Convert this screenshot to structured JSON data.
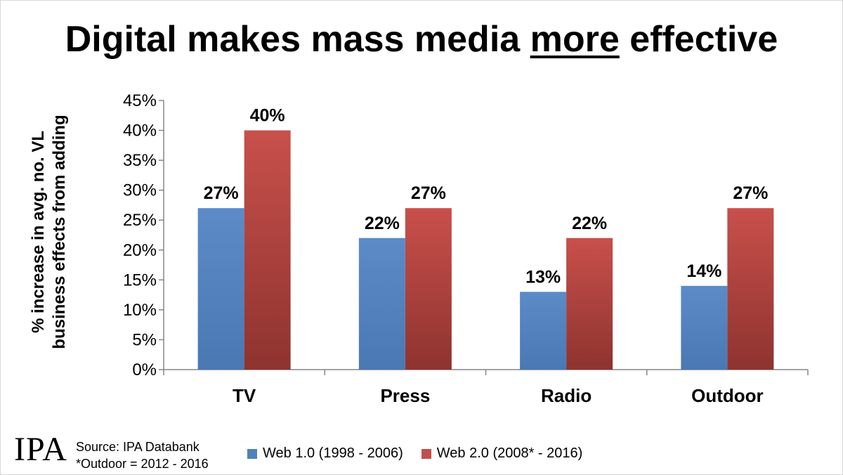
{
  "title": {
    "prefix": "Digital makes mass media ",
    "emphasis": "more",
    "suffix": " effective"
  },
  "chart_data": {
    "type": "bar",
    "title": "Digital makes mass media more effective",
    "ylabel_line1": "% increase in avg. no. VL",
    "ylabel_line2": "business effects from adding",
    "xlabel": "",
    "ylim": [
      0,
      45
    ],
    "ytick_step": 5,
    "ytick_suffix": "%",
    "categories": [
      "TV",
      "Press",
      "Radio",
      "Outdoor"
    ],
    "series": [
      {
        "name": "Web 1.0 (1998 - 2006)",
        "values": [
          27,
          22,
          13,
          14
        ],
        "color": "#4f81bd"
      },
      {
        "name": "Web 2.0 (2008* - 2016)",
        "values": [
          40,
          27,
          22,
          27
        ],
        "color": "#c0504d"
      }
    ],
    "data_label_suffix": "%",
    "legend": "bottom"
  },
  "footer": {
    "logo_text": "IPA",
    "source_line1": "Source: IPA Databank",
    "source_line2": "*Outdoor = 2012 - 2016"
  }
}
